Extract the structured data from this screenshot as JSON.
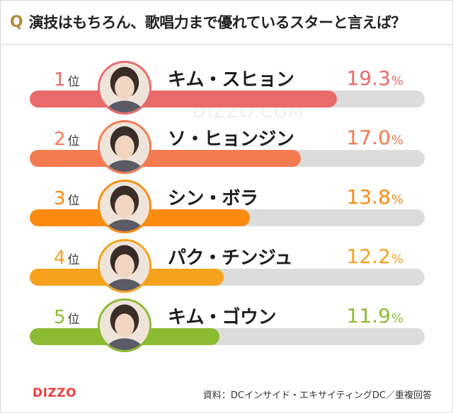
{
  "header": {
    "q_mark": "Q",
    "title": "演技はもちろん、歌唱力まで優れているスターと言えば？"
  },
  "watermark": "DIZZO.COM",
  "rank_unit": "位",
  "percent_sign": "%",
  "chart_data": {
    "type": "bar",
    "title": "演技はもちろん、歌唱力まで優れているスターと言えば？",
    "orientation": "horizontal",
    "ylim": [
      0,
      100
    ],
    "grid": false,
    "legend": "none",
    "categories": [
      "キム・スヒョン",
      "ソ・ヒョンジン",
      "シン・ボラ",
      "パク・チンジュ",
      "キム・ゴウン"
    ],
    "values": [
      19.3,
      17.0,
      13.8,
      12.2,
      11.9
    ],
    "ranks": [
      "1",
      "2",
      "3",
      "4",
      "5"
    ],
    "labels": [
      "19.3",
      "17.0",
      "13.8",
      "12.2",
      "11.9"
    ],
    "colors": [
      "#e86a6a",
      "#f47a50",
      "#fb8a10",
      "#f6a21c",
      "#8cbb33"
    ]
  },
  "footer": {
    "logo": "DIZZO",
    "source": "資料：DCインサイド・エキサイティングDC／重複回答"
  }
}
